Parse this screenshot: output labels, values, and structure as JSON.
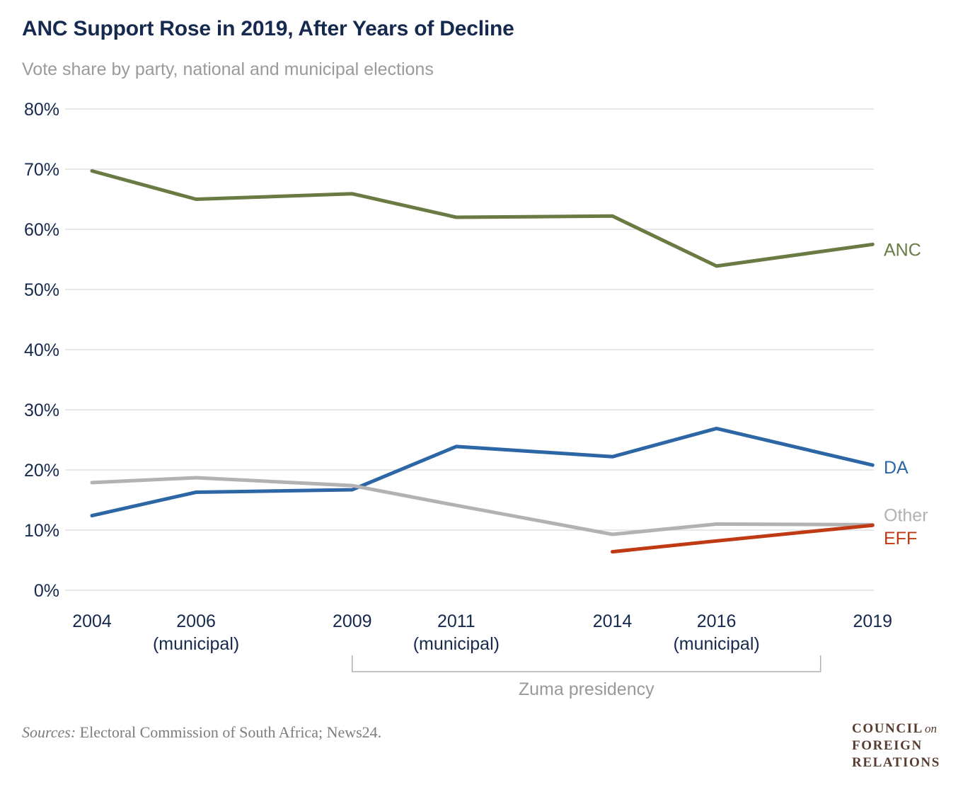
{
  "header": {
    "title": "ANC Support Rose in 2019, After Years of Decline",
    "subtitle": "Vote share by party, national and municipal elections"
  },
  "chart_data": {
    "type": "line",
    "title": "ANC Support Rose in 2019, After Years of Decline",
    "subtitle": "Vote share by party, national and municipal elections",
    "x_categories": [
      {
        "year": 2004,
        "label": "2004",
        "note": ""
      },
      {
        "year": 2006,
        "label": "2006",
        "note": "(municipal)"
      },
      {
        "year": 2009,
        "label": "2009",
        "note": ""
      },
      {
        "year": 2011,
        "label": "2011",
        "note": "(municipal)"
      },
      {
        "year": 2014,
        "label": "2014",
        "note": ""
      },
      {
        "year": 2016,
        "label": "2016",
        "note": "(municipal)"
      },
      {
        "year": 2019,
        "label": "2019",
        "note": ""
      }
    ],
    "series": [
      {
        "name": "ANC",
        "color": "#697a43",
        "values": [
          69.7,
          65.0,
          65.9,
          62.0,
          62.2,
          53.9,
          57.5
        ],
        "label_dy": 16
      },
      {
        "name": "DA",
        "color": "#2c66a5",
        "values": [
          12.4,
          16.3,
          16.7,
          23.9,
          22.2,
          26.9,
          20.8
        ],
        "label_dy": 12
      },
      {
        "name": "Other",
        "color": "#b2b2b2",
        "values": [
          17.9,
          18.7,
          17.4,
          14.1,
          9.3,
          11.0,
          10.9
        ],
        "label_dy": -5
      },
      {
        "name": "EFF",
        "color": "#bf3a12",
        "values": [
          null,
          null,
          null,
          null,
          6.4,
          8.2,
          10.8
        ],
        "label_dy": 27
      }
    ],
    "ylim": [
      0,
      80
    ],
    "ytick_step": 10,
    "ytick_suffix": "%",
    "grid": "horizontal",
    "legend_position": "right-of-line-ends",
    "annotation": {
      "label": "Zuma presidency",
      "from_year": 2009,
      "to_year": 2018
    }
  },
  "footer": {
    "sources_label": "Sources:",
    "sources_text": " Electoral Commission of South Africa; News24.",
    "logo": {
      "line1": "COUNCIL",
      "line1_connector": "on",
      "line2": "FOREIGN",
      "line3": "RELATIONS"
    }
  },
  "colors": {
    "title_navy": "#16294e",
    "axis_navy": "#16294e",
    "subtitle_gray": "#9a9a9a",
    "gridline": "#d9d9d9",
    "bracket": "#b0b0b0",
    "annotation_text": "#999999",
    "sources_text": "#7d7d7d",
    "logo_brown": "#573b30"
  }
}
